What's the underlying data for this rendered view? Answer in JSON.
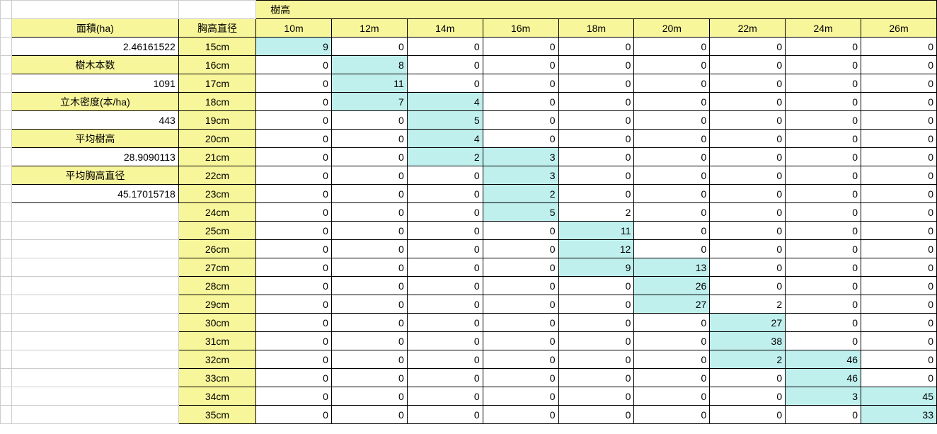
{
  "colors": {
    "yellow": "#f8f69a",
    "cyan": "#c0f0ee",
    "white": "#ffffff"
  },
  "header": {
    "tree_height_label": "樹高",
    "diameter_label": "胸高直径",
    "height_cols": [
      "10m",
      "12m",
      "14m",
      "16m",
      "18m",
      "20m",
      "22m",
      "24m",
      "26m"
    ]
  },
  "left_panel": [
    {
      "label": "面積(ha)",
      "value": "2.46161522"
    },
    {
      "label": "樹木本数",
      "value": "1091"
    },
    {
      "label": "立木密度(本/ha)",
      "value": "443"
    },
    {
      "label": "平均樹高",
      "value": "28.9090113"
    },
    {
      "label": "平均胸高直径",
      "value": "45.17015718"
    }
  ],
  "diameters": [
    "15cm",
    "16cm",
    "17cm",
    "18cm",
    "19cm",
    "20cm",
    "21cm",
    "22cm",
    "23cm",
    "24cm",
    "25cm",
    "26cm",
    "27cm",
    "28cm",
    "29cm",
    "30cm",
    "31cm",
    "32cm",
    "33cm",
    "34cm",
    "35cm"
  ],
  "grid": [
    [
      9,
      0,
      0,
      0,
      0,
      0,
      0,
      0,
      0
    ],
    [
      0,
      8,
      0,
      0,
      0,
      0,
      0,
      0,
      0
    ],
    [
      0,
      11,
      0,
      0,
      0,
      0,
      0,
      0,
      0
    ],
    [
      0,
      7,
      4,
      0,
      0,
      0,
      0,
      0,
      0
    ],
    [
      0,
      0,
      5,
      0,
      0,
      0,
      0,
      0,
      0
    ],
    [
      0,
      0,
      4,
      0,
      0,
      0,
      0,
      0,
      0
    ],
    [
      0,
      0,
      2,
      3,
      0,
      0,
      0,
      0,
      0
    ],
    [
      0,
      0,
      0,
      3,
      0,
      0,
      0,
      0,
      0
    ],
    [
      0,
      0,
      0,
      2,
      0,
      0,
      0,
      0,
      0
    ],
    [
      0,
      0,
      0,
      5,
      2,
      0,
      0,
      0,
      0
    ],
    [
      0,
      0,
      0,
      0,
      11,
      0,
      0,
      0,
      0
    ],
    [
      0,
      0,
      0,
      0,
      12,
      0,
      0,
      0,
      0
    ],
    [
      0,
      0,
      0,
      0,
      9,
      13,
      0,
      0,
      0
    ],
    [
      0,
      0,
      0,
      0,
      0,
      26,
      0,
      0,
      0
    ],
    [
      0,
      0,
      0,
      0,
      0,
      27,
      2,
      0,
      0
    ],
    [
      0,
      0,
      0,
      0,
      0,
      0,
      27,
      0,
      0
    ],
    [
      0,
      0,
      0,
      0,
      0,
      0,
      38,
      0,
      0
    ],
    [
      0,
      0,
      0,
      0,
      0,
      0,
      2,
      46,
      0
    ],
    [
      0,
      0,
      0,
      0,
      0,
      0,
      0,
      46,
      0
    ],
    [
      0,
      0,
      0,
      0,
      0,
      0,
      0,
      3,
      45
    ],
    [
      0,
      0,
      0,
      0,
      0,
      0,
      0,
      0,
      33
    ]
  ],
  "highlights": [
    [
      0
    ],
    [
      1
    ],
    [
      1
    ],
    [
      1,
      2
    ],
    [
      2
    ],
    [
      2
    ],
    [
      2,
      3
    ],
    [
      3
    ],
    [
      3
    ],
    [
      3
    ],
    [
      4
    ],
    [
      4
    ],
    [
      4,
      5
    ],
    [
      5
    ],
    [
      5
    ],
    [
      6
    ],
    [
      6
    ],
    [
      6,
      7
    ],
    [
      7
    ],
    [
      7,
      8
    ],
    [
      8
    ]
  ]
}
